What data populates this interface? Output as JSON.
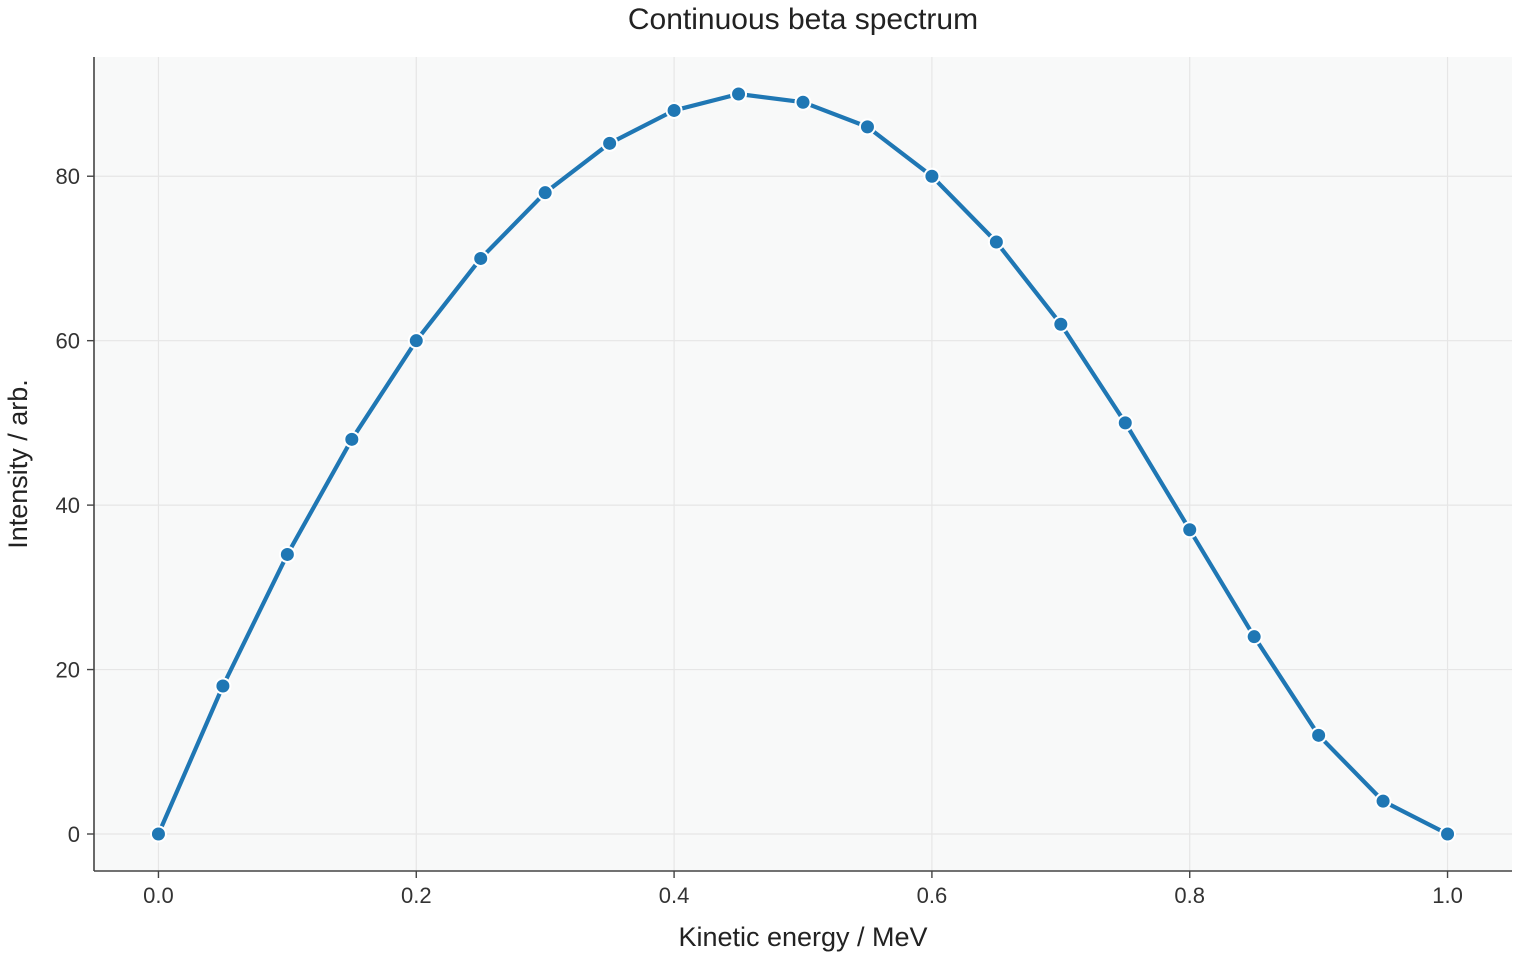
{
  "chart_data": {
    "type": "line",
    "title": "Continuous beta spectrum",
    "xlabel": "Kinetic energy / MeV",
    "ylabel": "Intensity / arb.",
    "xlim": [
      -0.05,
      1.05
    ],
    "ylim": [
      -4.5,
      94.5
    ],
    "x_ticks": [
      "0.0",
      "0.2",
      "0.4",
      "0.6",
      "0.8",
      "1.0"
    ],
    "y_ticks": [
      "0",
      "20",
      "40",
      "60",
      "80"
    ],
    "grid": true,
    "series": [
      {
        "color": "#1f77b4",
        "marker": "circle",
        "x": [
          0.0,
          0.05,
          0.1,
          0.15,
          0.2,
          0.25,
          0.3,
          0.35,
          0.4,
          0.45,
          0.5,
          0.55,
          0.6,
          0.65,
          0.7,
          0.75,
          0.8,
          0.85,
          0.9,
          0.95,
          1.0
        ],
        "y": [
          0,
          18,
          34,
          48,
          60,
          70,
          78,
          84,
          88,
          90,
          89,
          86,
          80,
          72,
          62,
          50,
          37,
          24,
          12,
          4,
          0
        ]
      }
    ]
  }
}
